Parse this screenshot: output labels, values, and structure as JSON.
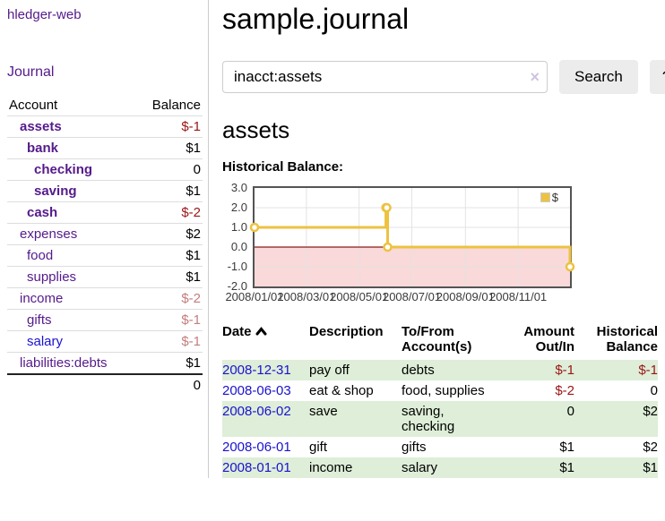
{
  "app": {
    "brand": "hledger-web"
  },
  "sidebar": {
    "nav": [
      {
        "label": "Journal"
      }
    ],
    "accounts": {
      "header": {
        "account": "Account",
        "balance": "Balance"
      },
      "rows": [
        {
          "name": "assets",
          "depth": 1,
          "bold": true,
          "balance": "$-1",
          "balance_tone": "negative",
          "link_tone": "purple"
        },
        {
          "name": "bank",
          "depth": 2,
          "bold": true,
          "balance": "$1",
          "balance_tone": "normal",
          "link_tone": "purple"
        },
        {
          "name": "checking",
          "depth": 3,
          "bold": true,
          "balance": "0",
          "balance_tone": "normal",
          "link_tone": "purple"
        },
        {
          "name": "saving",
          "depth": 3,
          "bold": true,
          "balance": "$1",
          "balance_tone": "normal",
          "link_tone": "purple"
        },
        {
          "name": "cash",
          "depth": 2,
          "bold": true,
          "balance": "$-2",
          "balance_tone": "negative",
          "link_tone": "purple"
        },
        {
          "name": "expenses",
          "depth": 1,
          "bold": false,
          "balance": "$2",
          "balance_tone": "normal",
          "link_tone": "purple"
        },
        {
          "name": "food",
          "depth": 2,
          "bold": false,
          "balance": "$1",
          "balance_tone": "normal",
          "link_tone": "purple"
        },
        {
          "name": "supplies",
          "depth": 2,
          "bold": false,
          "balance": "$1",
          "balance_tone": "normal",
          "link_tone": "purple"
        },
        {
          "name": "income",
          "depth": 1,
          "bold": false,
          "balance": "$-2",
          "balance_tone": "negative-dim",
          "link_tone": "purple"
        },
        {
          "name": "gifts",
          "depth": 2,
          "bold": false,
          "balance": "$-1",
          "balance_tone": "negative-dim",
          "link_tone": "purple"
        },
        {
          "name": "salary",
          "depth": 2,
          "bold": false,
          "balance": "$-1",
          "balance_tone": "negative-dim",
          "link_tone": "blue"
        },
        {
          "name": "liabilities:debts",
          "depth": 1,
          "bold": false,
          "balance": "$1",
          "balance_tone": "normal",
          "link_tone": "purple"
        }
      ],
      "total": "0"
    }
  },
  "main": {
    "title": "sample.journal",
    "search": {
      "value": "inacct:assets",
      "clear_icon": "×",
      "button_label": "Search",
      "help_label": "?"
    },
    "account_heading": "assets",
    "chart_heading": "Historical Balance:",
    "register": {
      "headers": {
        "date": "Date",
        "description": "Description",
        "tofrom": "To/From Account(s)",
        "amount": "Amount Out/In",
        "balance": "Historical Balance"
      },
      "rows": [
        {
          "date": "2008-12-31",
          "description": "pay off",
          "accounts_lines": [
            "debts"
          ],
          "amount": "$-1",
          "amount_tone": "negative",
          "balance": "$-1",
          "balance_tone": "negative",
          "shaded": true
        },
        {
          "date": "2008-06-03",
          "description": "eat & shop",
          "accounts_lines": [
            "food, supplies"
          ],
          "amount": "$-2",
          "amount_tone": "negative",
          "balance": "0",
          "balance_tone": "normal",
          "shaded": false
        },
        {
          "date": "2008-06-02",
          "description": "save",
          "accounts_lines": [
            "saving,",
            "checking"
          ],
          "amount": "0",
          "amount_tone": "normal",
          "balance": "$2",
          "balance_tone": "normal",
          "shaded": true
        },
        {
          "date": "2008-06-01",
          "description": "gift",
          "accounts_lines": [
            "gifts"
          ],
          "amount": "$1",
          "amount_tone": "normal",
          "balance": "$2",
          "balance_tone": "normal",
          "shaded": false
        },
        {
          "date": "2008-01-01",
          "description": "income",
          "accounts_lines": [
            "salary"
          ],
          "amount": "$1",
          "amount_tone": "normal",
          "balance": "$1",
          "balance_tone": "normal",
          "shaded": true
        }
      ]
    }
  },
  "chart_data": {
    "type": "line",
    "title": "Historical Balance:",
    "step": true,
    "series": [
      {
        "name": "$",
        "color": "#edc240",
        "points": [
          [
            "2008-01-01",
            1
          ],
          [
            "2008-06-01",
            2
          ],
          [
            "2008-06-02",
            2
          ],
          [
            "2008-06-03",
            0
          ],
          [
            "2008-12-31",
            -1
          ]
        ]
      }
    ],
    "x_range": [
      "2008-01-01",
      "2008-12-31"
    ],
    "x_ticks": [
      {
        "date": "2008-01-01",
        "label": "2008/01/01"
      },
      {
        "date": "2008-03-01",
        "label": "2008/03/01"
      },
      {
        "date": "2008-05-01",
        "label": "2008/05/01"
      },
      {
        "date": "2008-07-01",
        "label": "2008/07/01"
      },
      {
        "date": "2008-09-01",
        "label": "2008/09/01"
      },
      {
        "date": "2008-11-01",
        "label": "2008/11/01"
      }
    ],
    "ylim": [
      -2,
      3
    ],
    "y_ticks": [
      3.0,
      2.0,
      1.0,
      0.0,
      -1.0,
      -2.0
    ],
    "y_tick_labels": [
      "3.0",
      "2.0",
      "1.0",
      "0.0",
      "-1.0",
      "-2.0"
    ],
    "grid": true,
    "legend": {
      "label": "$",
      "swatch_color": "#edc240",
      "position": "top-right"
    },
    "negative_region_fill": "#f9d9d9",
    "zero_line_color": "#8b1a1a",
    "plot_border_color": "#545454"
  }
}
